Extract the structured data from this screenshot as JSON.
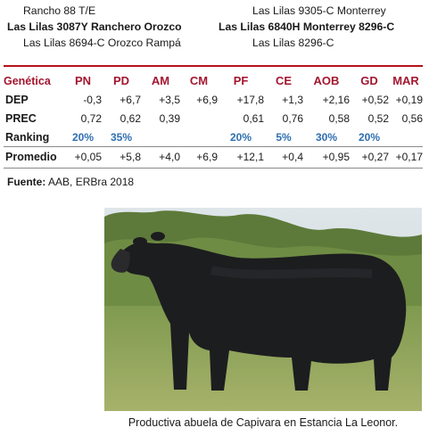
{
  "pedigree": {
    "left": [
      "Rancho 88 T/E",
      "Las Lilas 3087Y Ranchero Orozco",
      "Las Lilas 8694-C Orozco Rampá"
    ],
    "right": [
      "Las Lilas 9305-C Monterrey",
      "Las Lilas 6840H Monterrey 8296-C",
      "Las Lilas 8296-C"
    ]
  },
  "table": {
    "header_label": "Genética",
    "columns": [
      "PN",
      "PD",
      "AM",
      "CM",
      "PF",
      "CE",
      "AOB",
      "GD",
      "MAR"
    ],
    "rows": [
      {
        "label": "DEP",
        "values": [
          "-0,3",
          "+6,7",
          "+3,5",
          "+6,9",
          "+17,8",
          "+1,3",
          "+2,16",
          "+0,52",
          "+0,19"
        ]
      },
      {
        "label": "PREC",
        "values": [
          "0,72",
          "0,62",
          "0,39",
          "",
          "0,61",
          "0,76",
          "0,58",
          "0,52",
          "0,56"
        ]
      },
      {
        "label": "Ranking",
        "values": [
          "20%",
          "35%",
          "",
          "",
          "20%",
          "5%",
          "30%",
          "20%",
          ""
        ]
      },
      {
        "label": "Promedio",
        "values": [
          "+0,05",
          "+5,8",
          "+4,0",
          "+6,9",
          "+12,1",
          "+0,4",
          "+0,95",
          "+0,27",
          "+0,17"
        ]
      }
    ]
  },
  "source": {
    "label": "Fuente:",
    "text": " AAB, ERBra 2018"
  },
  "caption": "Productiva abuela de Capivara en Estancia La Leonor.",
  "colors": {
    "accent_red": "#a3162f",
    "ranking_blue": "#2f6fb1"
  }
}
